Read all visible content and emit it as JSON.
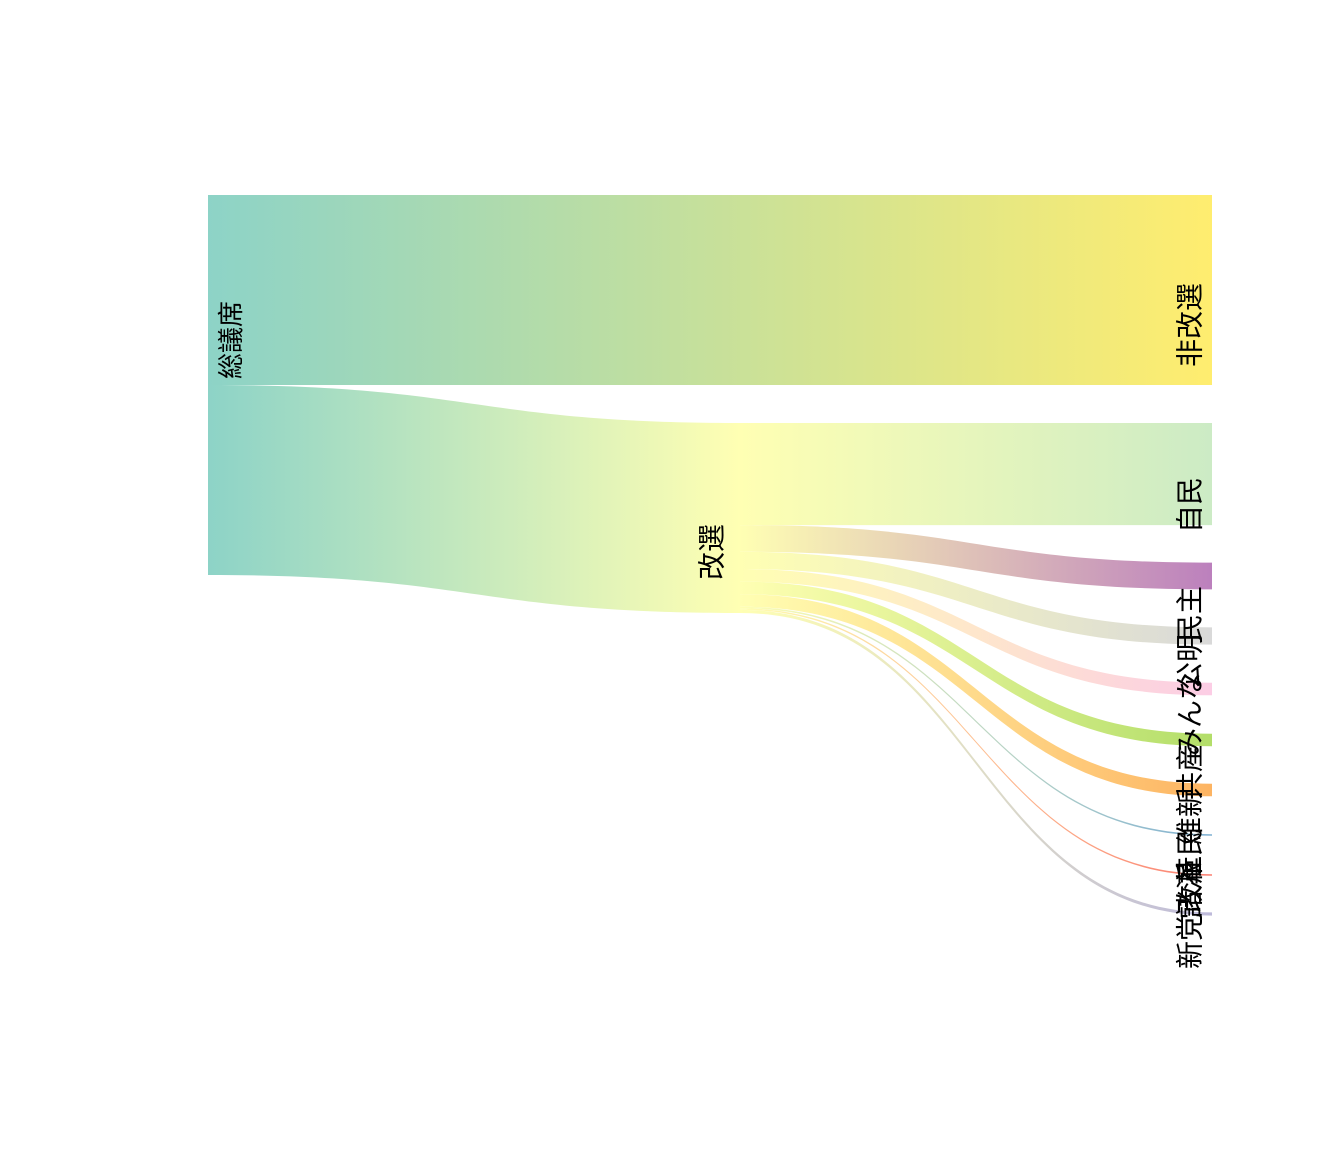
{
  "chart_data": {
    "type": "sankey",
    "title": "",
    "columns": [
      {
        "name": "source",
        "nodes": [
          "総議席"
        ]
      },
      {
        "name": "middle",
        "nodes": [
          "非改選",
          "改選"
        ]
      },
      {
        "name": "target",
        "nodes": [
          "非改選",
          "自民",
          "民主",
          "公明",
          "みんな",
          "共産",
          "維新",
          "社民",
          "諸派",
          "新党改革"
        ]
      }
    ],
    "nodes": [
      {
        "id": "total",
        "label": "総議席",
        "value": 242,
        "color": "#8DD3C7"
      },
      {
        "id": "kaisen",
        "label": "改選",
        "value": 121,
        "color": "#FFFFB3"
      },
      {
        "id": "hikaisen",
        "label": "非改選",
        "value": 121,
        "color": "#FFED6F"
      },
      {
        "id": "jimin",
        "label": "自民",
        "value": 65,
        "color": "#CCEBC5"
      },
      {
        "id": "minshu",
        "label": "民主",
        "value": 17,
        "color": "#BC80BD"
      },
      {
        "id": "komei",
        "label": "公明",
        "value": 11,
        "color": "#D9D9D9"
      },
      {
        "id": "minna",
        "label": "みんな",
        "value": 8,
        "color": "#FCCDE5"
      },
      {
        "id": "kyosan",
        "label": "共産",
        "value": 8,
        "color": "#B3DE69"
      },
      {
        "id": "ishin",
        "label": "維新",
        "value": 8,
        "color": "#FDB462"
      },
      {
        "id": "shamin",
        "label": "社民",
        "value": 1,
        "color": "#80B1D3"
      },
      {
        "id": "shoha",
        "label": "諸派",
        "value": 1,
        "color": "#FB8072"
      },
      {
        "id": "kaikaku",
        "label": "新党改革",
        "value": 2,
        "color": "#BEBADA"
      }
    ],
    "links": [
      {
        "source": "total",
        "target": "hikaisen",
        "value": 121
      },
      {
        "source": "total",
        "target": "kaisen",
        "value": 121
      },
      {
        "source": "kaisen",
        "target": "jimin",
        "value": 65
      },
      {
        "source": "kaisen",
        "target": "minshu",
        "value": 17
      },
      {
        "source": "kaisen",
        "target": "komei",
        "value": 11
      },
      {
        "source": "kaisen",
        "target": "minna",
        "value": 8
      },
      {
        "source": "kaisen",
        "target": "kyosan",
        "value": 8
      },
      {
        "source": "kaisen",
        "target": "ishin",
        "value": 8
      },
      {
        "source": "kaisen",
        "target": "shamin",
        "value": 1
      },
      {
        "source": "kaisen",
        "target": "shoha",
        "value": 1
      },
      {
        "source": "kaisen",
        "target": "kaikaku",
        "value": 2
      }
    ]
  }
}
